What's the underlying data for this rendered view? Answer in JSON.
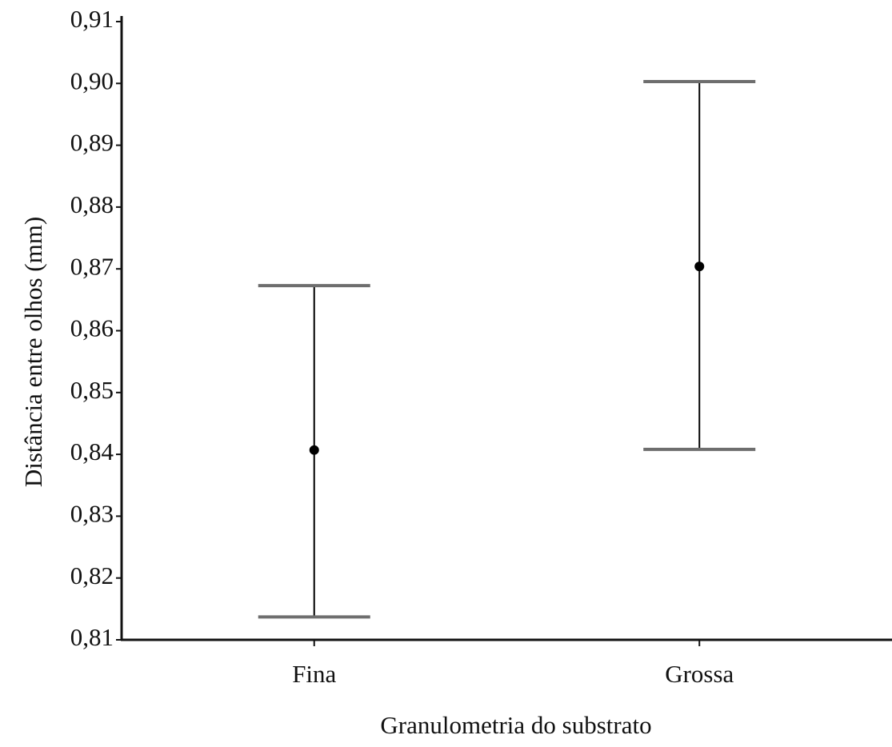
{
  "chart_data": {
    "type": "errorbar",
    "x_label": "Granulometria do substrato",
    "y_label": "Distância entre olhos (mm)",
    "categories": [
      "Fina",
      "Grossa"
    ],
    "values": [
      0.8407,
      0.8704
    ],
    "lower": [
      0.8137,
      0.8408
    ],
    "upper": [
      0.8673,
      0.9003
    ],
    "color": "#000000",
    "cap_color": "#6e6e6e",
    "ylim": [
      0.81,
      0.91
    ],
    "yticks": [
      {
        "value": 0.81,
        "label": "0,81"
      },
      {
        "value": 0.82,
        "label": "0,82"
      },
      {
        "value": 0.83,
        "label": "0,83"
      },
      {
        "value": 0.84,
        "label": "0,84"
      },
      {
        "value": 0.85,
        "label": "0,85"
      },
      {
        "value": 0.86,
        "label": "0,86"
      },
      {
        "value": 0.87,
        "label": "0,87"
      },
      {
        "value": 0.88,
        "label": "0,88"
      },
      {
        "value": 0.89,
        "label": "0,89"
      },
      {
        "value": 0.9,
        "label": "0,90"
      },
      {
        "value": 0.91,
        "label": "0,91"
      }
    ],
    "grid": false
  }
}
